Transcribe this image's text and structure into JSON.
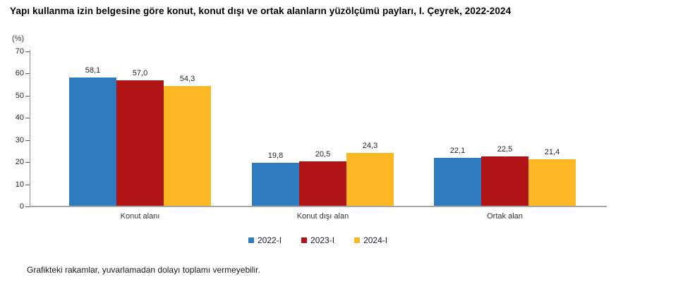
{
  "title": "Yapı kullanma izin belgesine göre konut, konut dışı ve ortak alanların yüzölçümü payları, I. Çeyrek, 2022-2024",
  "footnote": "Grafikteki rakamlar, yuvarlamadan dolayı toplamı vermeyebilir.",
  "chart_data": {
    "type": "bar",
    "title": "Yapı kullanma izin belgesine göre konut, konut dışı ve ortak alanların yüzölçümü payları, I. Çeyrek, 2022-2024",
    "categories": [
      "Konut alanı",
      "Konut dışı alan",
      "Ortak alan"
    ],
    "series": [
      {
        "name": "2022-I",
        "color": "#2e7cbf",
        "values": [
          58.1,
          19.8,
          22.1
        ],
        "labels": [
          "58,1",
          "19,8",
          "22,1"
        ]
      },
      {
        "name": "2023-I",
        "color": "#b11414",
        "values": [
          57.0,
          20.5,
          22.5
        ],
        "labels": [
          "57,0",
          "20,5",
          "22,5"
        ]
      },
      {
        "name": "2024-I",
        "color": "#fbb822",
        "values": [
          54.3,
          24.3,
          21.4
        ],
        "labels": [
          "54,3",
          "24,3",
          "21,4"
        ]
      }
    ],
    "xlabel": "",
    "ylabel": "(%)",
    "ylim": [
      0,
      70
    ],
    "yticks": [
      0,
      10,
      20,
      30,
      40,
      50,
      60,
      70
    ],
    "grid": false,
    "legend_position": "bottom",
    "value_label_decimal_separator": ","
  }
}
